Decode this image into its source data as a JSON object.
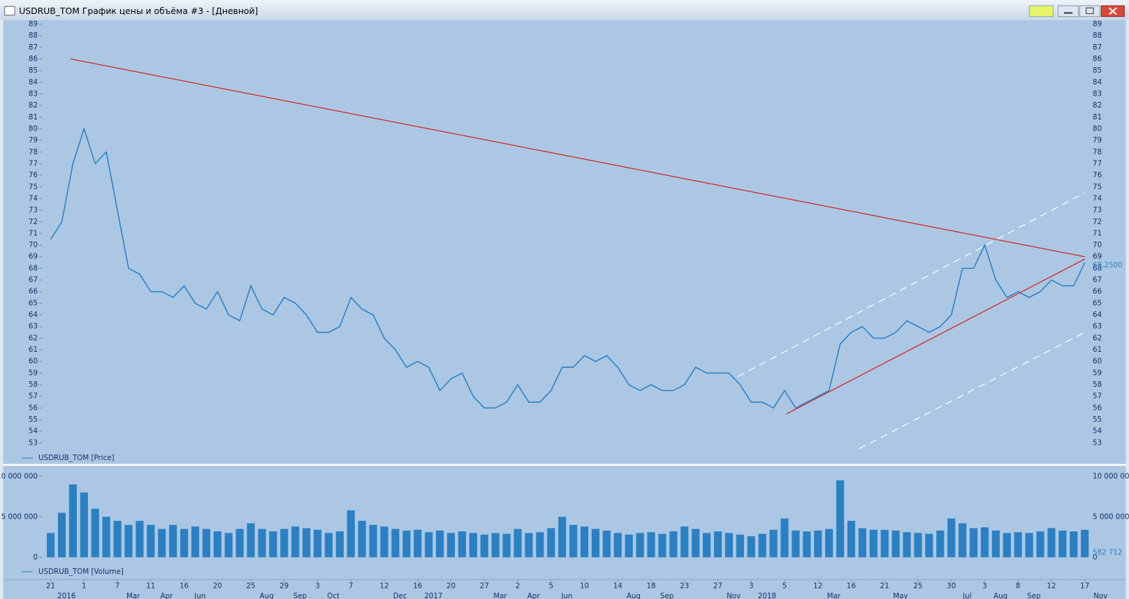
{
  "window_title": "USDRUB_TOM График цены и объёма #3 - [Дневной]",
  "chart_data": [
    {
      "type": "line",
      "categories": [
        "21",
        null,
        null,
        "1",
        null,
        null,
        "7",
        null,
        null,
        "11",
        null,
        null,
        "16",
        null,
        null,
        "20",
        null,
        null,
        "25",
        null,
        null,
        "29",
        null,
        null,
        "3",
        null,
        null,
        "7",
        null,
        null,
        "12",
        null,
        null,
        "16",
        null,
        null,
        "20",
        null,
        null,
        "27",
        null,
        null,
        "2",
        null,
        null,
        "5",
        null,
        null,
        "10",
        null,
        null,
        "14",
        null,
        null,
        "18",
        null,
        null,
        "23",
        null,
        null,
        "27",
        null,
        null,
        "3",
        null,
        null,
        "5",
        null,
        null,
        "12",
        null,
        null,
        "16",
        null,
        null,
        "21",
        null,
        null,
        "25",
        null,
        null,
        "30",
        null,
        null,
        "3",
        null,
        null,
        "8",
        null,
        null,
        "12",
        null,
        null,
        "17"
      ],
      "category_groups": [
        "2016",
        null,
        null,
        null,
        null,
        null,
        "Mar",
        null,
        null,
        "Apr",
        null,
        null,
        "Jun",
        null,
        null,
        null,
        null,
        null,
        "Aug",
        null,
        null,
        "Sep",
        null,
        null,
        "Oct",
        null,
        null,
        null,
        null,
        null,
        "Dec",
        null,
        null,
        "2017",
        null,
        null,
        null,
        null,
        null,
        "Mar",
        null,
        null,
        "Apr",
        null,
        null,
        "Jun",
        null,
        null,
        null,
        null,
        null,
        "Aug",
        null,
        null,
        "Sep",
        null,
        null,
        null,
        null,
        null,
        "Nov",
        null,
        null,
        "2018",
        null,
        null,
        null,
        null,
        null,
        "Mar",
        null,
        null,
        null,
        null,
        null,
        "May",
        null,
        null,
        null,
        null,
        null,
        "Jul",
        null,
        null,
        "Aug",
        null,
        null,
        "Sep",
        null,
        null,
        null,
        null,
        null,
        "Nov",
        null,
        null,
        null
      ],
      "series": [
        {
          "name": "USDRUB_TOM [Price]",
          "color": "#2b80c4",
          "values": [
            70.5,
            72,
            77,
            80,
            77,
            78,
            73,
            68,
            67.5,
            66,
            66,
            65.5,
            66.5,
            65,
            64.5,
            66,
            64,
            63.5,
            66.5,
            64.5,
            64,
            65.5,
            65,
            64,
            62.5,
            62.5,
            63,
            65.5,
            64.5,
            64,
            62,
            61,
            59.5,
            60,
            59.5,
            57.5,
            58.5,
            59,
            57,
            56,
            56,
            56.5,
            58,
            56.5,
            56.5,
            57.5,
            59.5,
            59.5,
            60.5,
            60,
            60.5,
            59.5,
            58,
            57.5,
            58,
            57.5,
            57.5,
            58,
            59.5,
            59,
            59,
            59,
            58,
            56.5,
            56.5,
            56,
            57.5,
            56,
            56.5,
            57,
            57.5,
            61.5,
            62.5,
            63,
            62,
            62,
            62.5,
            63.5,
            63,
            62.5,
            63,
            64,
            68,
            68,
            70,
            67,
            65.5,
            66,
            65.5,
            66,
            67,
            66.5,
            66.5,
            68.5
          ]
        }
      ],
      "last_value": {
        "value": 68.25,
        "label": "68,2500"
      },
      "lines": [
        {
          "color": "#d42020",
          "dashed": false,
          "points": [
            [
              1.8,
              86
            ],
            [
              93,
              69
            ]
          ]
        },
        {
          "color": "#d42020",
          "dashed": false,
          "points": [
            [
              66.2,
              55.5
            ],
            [
              93,
              68.8
            ]
          ]
        },
        {
          "color": "#ffffff",
          "dashed": true,
          "points": [
            [
              61.8,
              58.7
            ],
            [
              93,
              74.5
            ]
          ]
        },
        {
          "color": "#ffffff",
          "dashed": true,
          "points": [
            [
              72.7,
              52.5
            ],
            [
              93,
              62.5
            ]
          ]
        }
      ],
      "ylim": [
        51.2,
        89.4
      ],
      "yticks": [
        53,
        54,
        55,
        56,
        57,
        58,
        59,
        60,
        61,
        62,
        63,
        64,
        65,
        66,
        67,
        68,
        69,
        70,
        71,
        72,
        73,
        74,
        75,
        76,
        77,
        78,
        79,
        80,
        81,
        82,
        83,
        84,
        85,
        86,
        87,
        88,
        89
      ]
    },
    {
      "type": "bar",
      "series": [
        {
          "name": "USDRUB_TOM [Volume]",
          "color": "#2b80c4",
          "values": [
            3000000,
            5500000,
            9000000,
            8000000,
            6000000,
            5000000,
            4500000,
            4000000,
            4500000,
            4000000,
            3500000,
            4000000,
            3500000,
            3800000,
            3500000,
            3200000,
            3000000,
            3500000,
            4200000,
            3500000,
            3200000,
            3500000,
            3800000,
            3600000,
            3400000,
            3000000,
            3200000,
            5800000,
            4500000,
            4000000,
            3800000,
            3500000,
            3300000,
            3400000,
            3100000,
            3300000,
            3000000,
            3200000,
            3000000,
            2800000,
            3000000,
            2900000,
            3500000,
            3000000,
            3100000,
            3600000,
            5000000,
            4000000,
            3800000,
            3500000,
            3300000,
            3000000,
            2800000,
            3000000,
            3100000,
            2900000,
            3200000,
            3800000,
            3500000,
            3000000,
            3200000,
            3000000,
            2800000,
            2600000,
            2900000,
            3400000,
            4800000,
            3300000,
            3200000,
            3300000,
            3500000,
            9500000,
            4500000,
            3600000,
            3400000,
            3400000,
            3300000,
            3100000,
            3000000,
            2900000,
            3300000,
            4800000,
            4200000,
            3600000,
            3700000,
            3300000,
            3000000,
            3100000,
            3000000,
            3200000,
            3600000,
            3300000,
            3200000,
            3400000
          ]
        }
      ],
      "last_value": {
        "value": 582712,
        "label": "582 712"
      },
      "ylim": [
        0,
        11100000
      ],
      "yticks": [
        0,
        {
          "value": 5000000,
          "label": "5 000 000"
        },
        {
          "value": 10000000,
          "label": "10 000 000"
        }
      ]
    }
  ]
}
